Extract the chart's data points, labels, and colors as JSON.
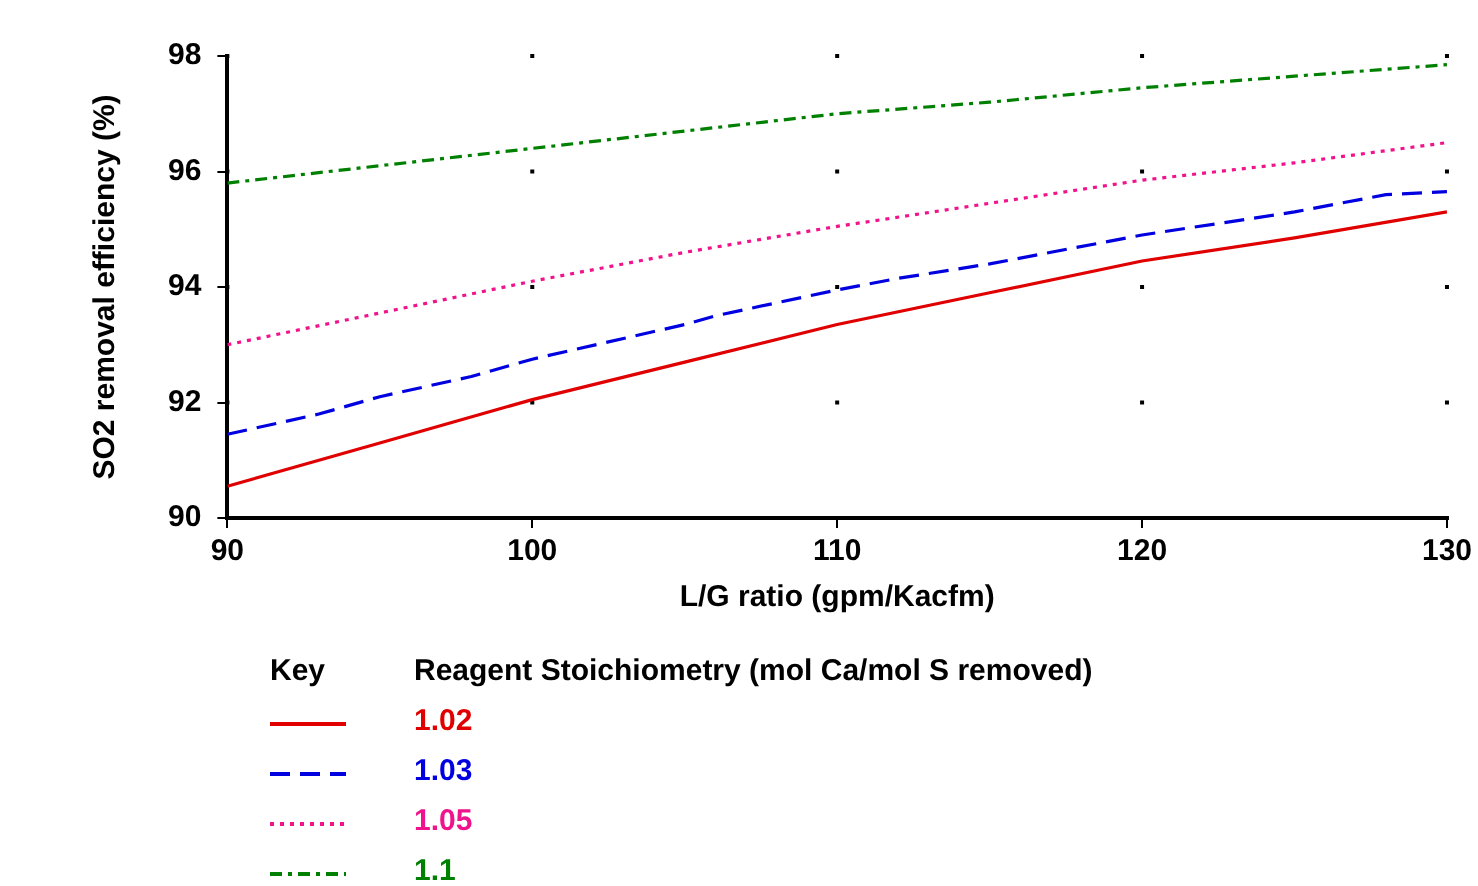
{
  "chart_data": {
    "type": "line",
    "xlabel": "L/G ratio (gpm/Kacfm)",
    "ylabel": "SO2 removal efficiency (%)",
    "legend_title": "Reagent Stoichiometry (mol Ca/mol S removed)",
    "annotations": [
      "Key"
    ],
    "xlim": [
      90,
      130
    ],
    "xticks": [
      90,
      100,
      110,
      120,
      130
    ],
    "ylim": [
      90,
      98
    ],
    "yticks": [
      90,
      92,
      94,
      96,
      98
    ],
    "grid": true,
    "legend": "bottom",
    "marker": "none",
    "series": [
      {
        "name": "1.02",
        "color": "#e00000",
        "line_style": "solid",
        "x": [
          90,
          95,
          100,
          105,
          110,
          115,
          120,
          125,
          130
        ],
        "values": [
          90.55,
          91.3,
          92.05,
          92.7,
          93.35,
          93.9,
          94.45,
          94.85,
          95.3
        ]
      },
      {
        "name": "1.03",
        "color": "#0000e0",
        "line_style": "dashed",
        "x": [
          90,
          93,
          95,
          98,
          100,
          105,
          106,
          110,
          112,
          115,
          120,
          125,
          128,
          130
        ],
        "values": [
          91.45,
          91.8,
          92.1,
          92.45,
          92.75,
          93.35,
          93.5,
          93.95,
          94.15,
          94.4,
          94.9,
          95.3,
          95.6,
          95.65
        ]
      },
      {
        "name": "1.05",
        "color": "#f0148c",
        "line_style": "dotted",
        "x": [
          90,
          95,
          100,
          105,
          110,
          115,
          120,
          125,
          130
        ],
        "values": [
          93.0,
          93.55,
          94.1,
          94.6,
          95.05,
          95.45,
          95.85,
          96.15,
          96.5
        ]
      },
      {
        "name": "1.1",
        "color": "#008000",
        "line_style": "dashdot",
        "x": [
          90,
          95,
          100,
          105,
          110,
          115,
          120,
          125,
          130
        ],
        "values": [
          95.8,
          96.1,
          96.4,
          96.7,
          97.0,
          97.2,
          97.45,
          97.65,
          97.85
        ]
      }
    ]
  }
}
